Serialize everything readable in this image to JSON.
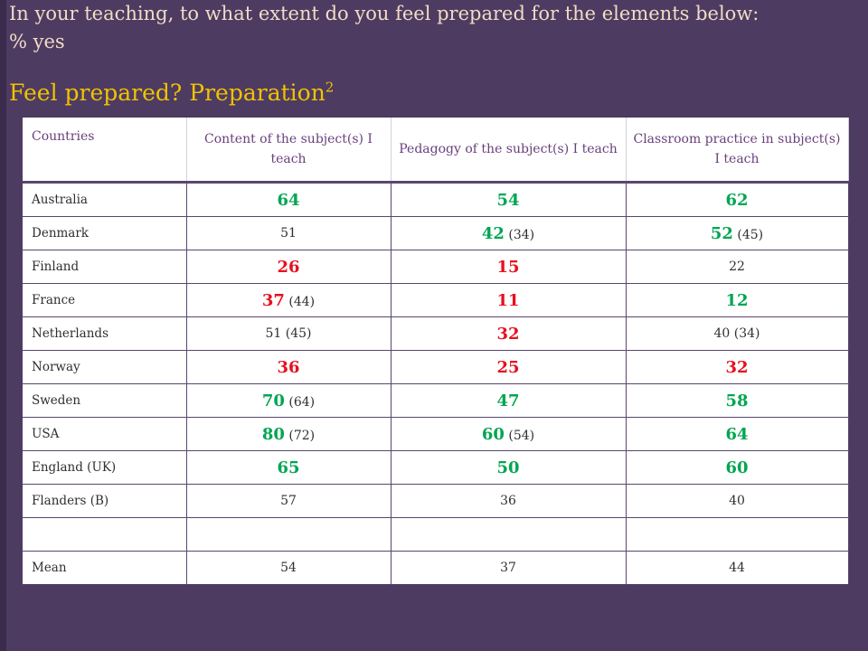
{
  "slide": {
    "subtitle_line1": "In your teaching, to what extent do you feel prepared for the elements below:",
    "subtitle_line2": "% yes",
    "heading": "Feel prepared? Preparation",
    "heading_superscript": "2"
  },
  "table": {
    "headers": {
      "countries": "Countries",
      "content": "Content of the subject(s) I teach",
      "pedagogy": "Pedagogy of the subject(s) I teach",
      "classroom": "Classroom practice in subject(s) I teach"
    },
    "rows": [
      {
        "country": "Australia",
        "content": {
          "main": "64",
          "paren": "",
          "color": "green"
        },
        "pedagogy": {
          "main": "54",
          "paren": "",
          "color": "green"
        },
        "classroom": {
          "main": "62",
          "paren": "",
          "color": "green"
        }
      },
      {
        "country": "Denmark",
        "content": {
          "main": "51",
          "paren": "",
          "color": "plain"
        },
        "pedagogy": {
          "main": "42",
          "paren": "(34)",
          "color": "green"
        },
        "classroom": {
          "main": "52",
          "paren": "(45)",
          "color": "green"
        }
      },
      {
        "country": "Finland",
        "content": {
          "main": "26",
          "paren": "",
          "color": "red"
        },
        "pedagogy": {
          "main": "15",
          "paren": "",
          "color": "red"
        },
        "classroom": {
          "main": "22",
          "paren": "",
          "color": "plain"
        }
      },
      {
        "country": "France",
        "content": {
          "main": "37",
          "paren": "(44)",
          "color": "red"
        },
        "pedagogy": {
          "main": "11",
          "paren": "",
          "color": "red"
        },
        "classroom": {
          "main": "12",
          "paren": "",
          "color": "green"
        }
      },
      {
        "country": "Netherlands",
        "content": {
          "main": "51 (45)",
          "paren": "",
          "color": "plain"
        },
        "pedagogy": {
          "main": "32",
          "paren": "",
          "color": "red"
        },
        "classroom": {
          "main": "40 (34)",
          "paren": "",
          "color": "plain"
        }
      },
      {
        "country": "Norway",
        "content": {
          "main": "36",
          "paren": "",
          "color": "red"
        },
        "pedagogy": {
          "main": "25",
          "paren": "",
          "color": "red"
        },
        "classroom": {
          "main": "32",
          "paren": "",
          "color": "red"
        }
      },
      {
        "country": "Sweden",
        "content": {
          "main": "70",
          "paren": "(64)",
          "color": "green"
        },
        "pedagogy": {
          "main": "47",
          "paren": "",
          "color": "green"
        },
        "classroom": {
          "main": "58",
          "paren": "",
          "color": "green"
        }
      },
      {
        "country": "USA",
        "content": {
          "main": "80",
          "paren": "(72)",
          "color": "green"
        },
        "pedagogy": {
          "main": "60",
          "paren": "(54)",
          "color": "green"
        },
        "classroom": {
          "main": "64",
          "paren": "",
          "color": "green"
        }
      },
      {
        "country": "England (UK)",
        "content": {
          "main": "65",
          "paren": "",
          "color": "green"
        },
        "pedagogy": {
          "main": "50",
          "paren": "",
          "color": "green"
        },
        "classroom": {
          "main": "60",
          "paren": "",
          "color": "green"
        }
      },
      {
        "country": "Flanders (B)",
        "content": {
          "main": "57",
          "paren": "",
          "color": "plain"
        },
        "pedagogy": {
          "main": "36",
          "paren": "",
          "color": "plain"
        },
        "classroom": {
          "main": "40",
          "paren": "",
          "color": "plain"
        }
      },
      {
        "country": "",
        "content": {
          "main": "",
          "paren": "",
          "color": "plain"
        },
        "pedagogy": {
          "main": "",
          "paren": "",
          "color": "plain"
        },
        "classroom": {
          "main": "",
          "paren": "",
          "color": "plain"
        }
      },
      {
        "country": "Mean",
        "content": {
          "main": "54",
          "paren": "",
          "color": "plain"
        },
        "pedagogy": {
          "main": "37",
          "paren": "",
          "color": "plain"
        },
        "classroom": {
          "main": "44",
          "paren": "",
          "color": "plain"
        }
      }
    ]
  },
  "colors": {
    "background": "#4d3b62",
    "subtitle": "#f2dbc4",
    "heading": "#f0c200",
    "header_text": "#6a3f7c",
    "green": "#00a651",
    "red": "#e8101d"
  }
}
